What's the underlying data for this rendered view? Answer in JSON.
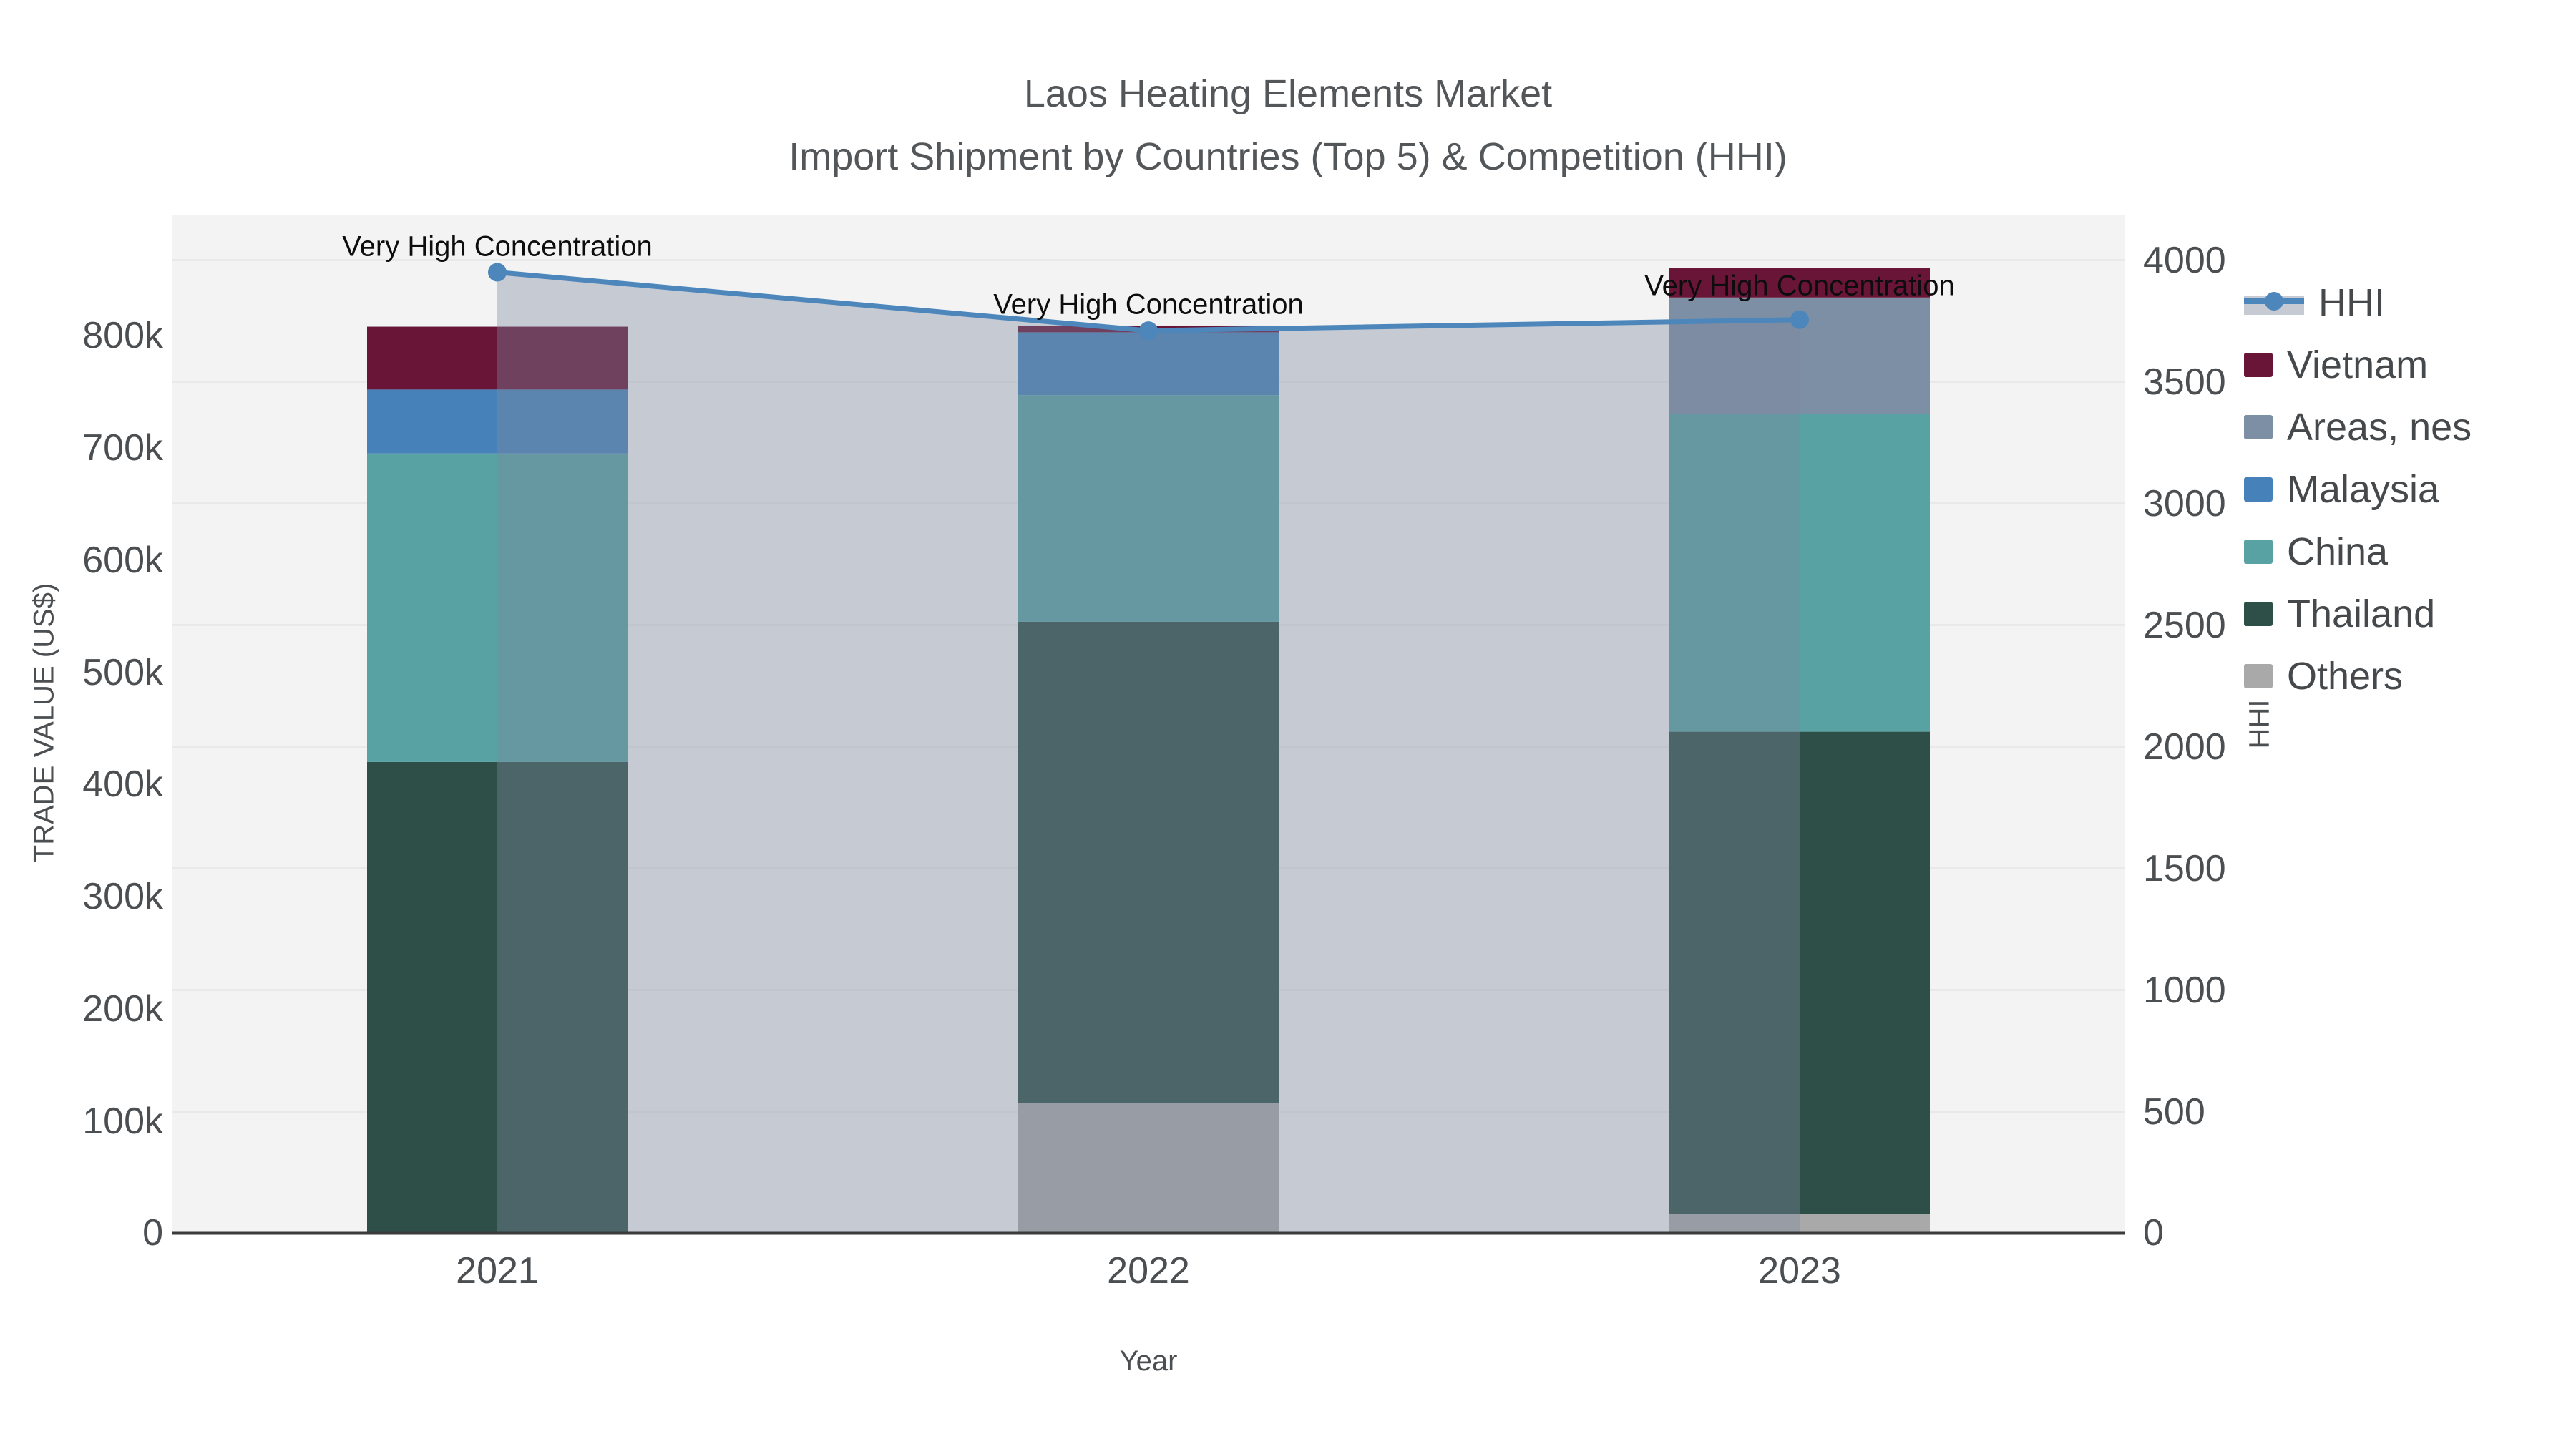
{
  "title": {
    "line1": "Laos Heating Elements Market",
    "line2": "Import Shipment by Countries (Top 5) & Competition (HHI)"
  },
  "chart_data": {
    "type": "combo-stacked-bar-with-line",
    "categories": [
      "2021",
      "2022",
      "2023"
    ],
    "xlabel": "Year",
    "y1": {
      "label": "TRADE VALUE (US$)",
      "tick_labels": [
        "0",
        "100k",
        "200k",
        "300k",
        "400k",
        "500k",
        "600k",
        "700k",
        "800k"
      ],
      "tick_values": [
        0,
        100000,
        200000,
        300000,
        400000,
        500000,
        600000,
        700000,
        800000
      ],
      "range": [
        0,
        908000
      ]
    },
    "y2": {
      "label": "HHI",
      "tick_labels": [
        "0",
        "500",
        "1000",
        "1500",
        "2000",
        "2500",
        "3000",
        "3500",
        "4000"
      ],
      "tick_values": [
        0,
        500,
        1000,
        1500,
        2000,
        2500,
        3000,
        3500,
        4000
      ],
      "range": [
        0,
        4187
      ]
    },
    "series": [
      {
        "name": "Others",
        "color": "#a9a9a9",
        "values": [
          0,
          116000,
          17000
        ]
      },
      {
        "name": "Thailand",
        "color": "#2d4f47",
        "values": [
          420000,
          429000,
          430000
        ]
      },
      {
        "name": "China",
        "color": "#58a2a3",
        "values": [
          275000,
          202000,
          283000
        ]
      },
      {
        "name": "Malaysia",
        "color": "#4682b9",
        "values": [
          57000,
          56000,
          0
        ]
      },
      {
        "name": "Areas, nes",
        "color": "#7d8fa4",
        "values": [
          0,
          0,
          104000
        ]
      },
      {
        "name": "Vietnam",
        "color": "#681537",
        "values": [
          56000,
          6000,
          26000
        ]
      }
    ],
    "hhi": {
      "name": "HHI",
      "line_color": "#4d86bb",
      "fill_color": "rgba(125,138,160,0.38)",
      "values": [
        3950,
        3710,
        3755
      ]
    },
    "annotations": [
      {
        "text": "Very High Concentration",
        "category": "2021"
      },
      {
        "text": "Very High Concentration",
        "category": "2022"
      },
      {
        "text": "Very High Concentration",
        "category": "2023"
      }
    ],
    "plot_bg": "#f2f3f2",
    "grid_color": "#e8eaea",
    "axis_line_color": "#3b3b3b"
  },
  "legend": {
    "items": [
      {
        "label": "HHI",
        "type": "line",
        "color": "#4d86bb"
      },
      {
        "label": "Vietnam",
        "type": "box",
        "color": "#681537"
      },
      {
        "label": "Areas, nes",
        "type": "box",
        "color": "#7d8fa4"
      },
      {
        "label": "Malaysia",
        "type": "box",
        "color": "#4682b9"
      },
      {
        "label": "China",
        "type": "box",
        "color": "#58a2a3"
      },
      {
        "label": "Thailand",
        "type": "box",
        "color": "#2d4f47"
      },
      {
        "label": "Others",
        "type": "box",
        "color": "#a9a9a9"
      }
    ]
  }
}
